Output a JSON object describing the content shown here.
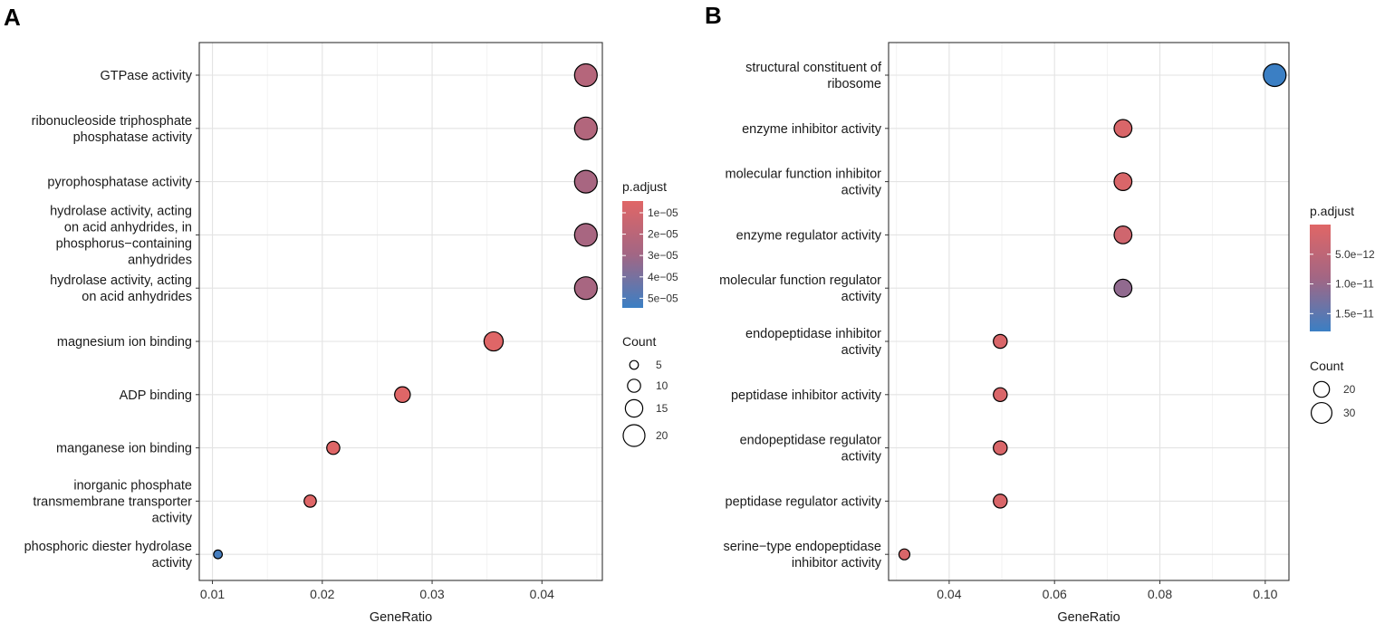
{
  "chart_data": [
    {
      "panel": "A",
      "type": "scatter",
      "xlabel": "GeneRatio",
      "xlim": [
        0.0088,
        0.0455
      ],
      "xticks": [
        0.01,
        0.02,
        0.03,
        0.04
      ],
      "xtick_labels": [
        "0.01",
        "0.02",
        "0.03",
        "0.04"
      ],
      "categories": [
        {
          "label": "GTPase activity",
          "lines": [
            "GTPase activity"
          ],
          "x": 0.044,
          "count": 21,
          "p_adjust": 2.2e-05
        },
        {
          "label": "ribonucleoside triphosphate phosphatase activity",
          "lines": [
            "ribonucleoside triphosphate",
            "phosphatase activity"
          ],
          "x": 0.044,
          "count": 21,
          "p_adjust": 2.3e-05
        },
        {
          "label": "pyrophosphatase activity",
          "lines": [
            "pyrophosphatase activity"
          ],
          "x": 0.044,
          "count": 21,
          "p_adjust": 2.7e-05
        },
        {
          "label": "hydrolase activity, acting on acid anhydrides, in phosphorus−containing anhydrides",
          "lines": [
            "hydrolase activity, acting",
            "on acid anhydrides, in",
            "phosphorus−containing",
            "anhydrides"
          ],
          "x": 0.044,
          "count": 21,
          "p_adjust": 2.7e-05
        },
        {
          "label": "hydrolase activity, acting on acid anhydrides",
          "lines": [
            "hydrolase activity, acting",
            "on acid anhydrides"
          ],
          "x": 0.044,
          "count": 21,
          "p_adjust": 2.7e-05
        },
        {
          "label": "magnesium ion binding",
          "lines": [
            "magnesium ion binding"
          ],
          "x": 0.0356,
          "count": 17,
          "p_adjust": 5e-06
        },
        {
          "label": "ADP binding",
          "lines": [
            "ADP binding"
          ],
          "x": 0.0273,
          "count": 13,
          "p_adjust": 5e-06
        },
        {
          "label": "manganese ion binding",
          "lines": [
            "manganese ion binding"
          ],
          "x": 0.021,
          "count": 10,
          "p_adjust": 5e-06
        },
        {
          "label": "inorganic phosphate transmembrane transporter activity",
          "lines": [
            "inorganic phosphate",
            "transmembrane transporter",
            "activity"
          ],
          "x": 0.0189,
          "count": 9,
          "p_adjust": 5e-06
        },
        {
          "label": "phosphoric diester hydrolase activity",
          "lines": [
            "phosphoric diester hydrolase",
            "activity"
          ],
          "x": 0.0105,
          "count": 5,
          "p_adjust": 5.2e-05
        }
      ],
      "color_legend": {
        "title": "p.adjust",
        "min": 4.5e-06,
        "max": 5.45e-05,
        "ticks": [
          1e-05,
          2e-05,
          3e-05,
          4e-05,
          5e-05
        ],
        "tick_labels": [
          "1e−05",
          "2e−05",
          "3e−05",
          "4e−05",
          "5e−05"
        ]
      },
      "size_legend": {
        "title": "Count",
        "size_min": 5,
        "size_max": 21,
        "values": [
          5,
          10,
          15,
          20
        ],
        "labels": [
          "5",
          "10",
          "15",
          "20"
        ]
      }
    },
    {
      "panel": "B",
      "type": "scatter",
      "xlabel": "GeneRatio",
      "xlim": [
        0.0285,
        0.1045
      ],
      "xticks": [
        0.04,
        0.06,
        0.08,
        0.1
      ],
      "xtick_labels": [
        "0.04",
        "0.06",
        "0.08",
        "0.10"
      ],
      "categories": [
        {
          "label": "structural constituent of ribosome",
          "lines": [
            "structural constituent of",
            "ribosome"
          ],
          "x": 0.1018,
          "count": 34,
          "p_adjust": 1.8e-11
        },
        {
          "label": "enzyme inhibitor activity",
          "lines": [
            "enzyme inhibitor activity"
          ],
          "x": 0.073,
          "count": 24,
          "p_adjust": 1e-12
        },
        {
          "label": "molecular function inhibitor activity",
          "lines": [
            "molecular function inhibitor",
            "activity"
          ],
          "x": 0.073,
          "count": 24,
          "p_adjust": 1e-12
        },
        {
          "label": "enzyme regulator activity",
          "lines": [
            "enzyme regulator activity"
          ],
          "x": 0.073,
          "count": 24,
          "p_adjust": 2.5e-12
        },
        {
          "label": "molecular function regulator activity",
          "lines": [
            "molecular function regulator",
            "activity"
          ],
          "x": 0.073,
          "count": 24,
          "p_adjust": 1.05e-11
        },
        {
          "label": "endopeptidase inhibitor activity",
          "lines": [
            "endopeptidase inhibitor",
            "activity"
          ],
          "x": 0.0497,
          "count": 16,
          "p_adjust": 1e-12
        },
        {
          "label": "peptidase inhibitor activity",
          "lines": [
            "peptidase inhibitor activity"
          ],
          "x": 0.0497,
          "count": 16,
          "p_adjust": 1e-12
        },
        {
          "label": "endopeptidase regulator activity",
          "lines": [
            "endopeptidase regulator",
            "activity"
          ],
          "x": 0.0497,
          "count": 16,
          "p_adjust": 1e-12
        },
        {
          "label": "peptidase regulator activity",
          "lines": [
            "peptidase regulator activity"
          ],
          "x": 0.0497,
          "count": 16,
          "p_adjust": 1e-12
        },
        {
          "label": "serine−type endopeptidase inhibitor activity",
          "lines": [
            "serine−type endopeptidase",
            "inhibitor activity"
          ],
          "x": 0.0315,
          "count": 10,
          "p_adjust": 1e-12
        }
      ],
      "color_legend": {
        "title": "p.adjust",
        "min": 0.0,
        "max": 1.8e-11,
        "ticks": [
          5e-12,
          1e-11,
          1.5e-11
        ],
        "tick_labels": [
          "5.0e−12",
          "1.0e−11",
          "1.5e−11"
        ]
      },
      "size_legend": {
        "title": "Count",
        "size_min": 10,
        "size_max": 34,
        "values": [
          20,
          30
        ],
        "labels": [
          "20",
          "30"
        ]
      }
    }
  ],
  "colors": {
    "low": "#e06666",
    "mid": "#a26684",
    "high": "#3b7fc4",
    "grid": "#e3e3e3",
    "border": "#333333"
  }
}
